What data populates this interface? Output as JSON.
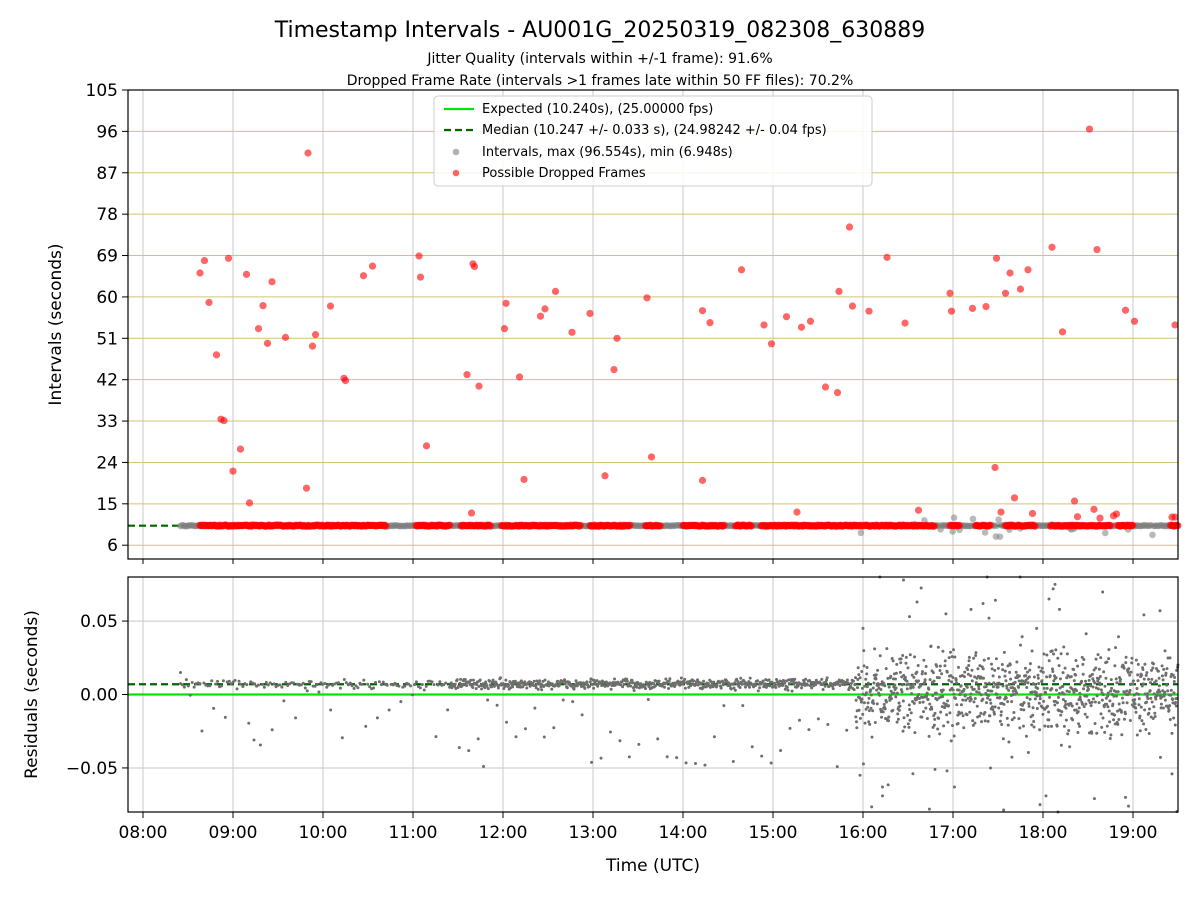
{
  "title": "Timestamp Intervals - AU001G_20250319_082308_630889",
  "subtitle_lines": [
    "Jitter Quality (intervals within +/-1 frame): 91.6%",
    "Dropped Frame Rate (intervals >1 frames late within 50 FF files): 70.2%"
  ],
  "colors": {
    "expected": "#00e600",
    "median": "#006400",
    "intervals": "#808080",
    "dropped": "#ff0000",
    "hgrid": "#d4c07a",
    "vgrid": "#c8c8c8"
  },
  "chart_data": [
    {
      "type": "scatter",
      "ylabel": "Intervals (seconds)",
      "xlim": [
        "07:50",
        "19:30"
      ],
      "ylim": [
        3,
        105
      ],
      "y_ticks": [
        6,
        15,
        24,
        33,
        42,
        51,
        60,
        69,
        78,
        87,
        96,
        105
      ],
      "grid": true,
      "legend_position": "top-center",
      "legend": [
        "Expected (10.240s), (25.00000 fps)",
        "Median (10.247 +/- 0.033 s), (24.98242 +/- 0.04 fps)",
        "Intervals, max (96.554s), min (6.948s)",
        "Possible Dropped Frames"
      ],
      "expected_line": 10.24,
      "median_line": 10.247,
      "dropped_frame_points": [
        [
          "08:38",
          65.2
        ],
        [
          "08:41",
          67.9
        ],
        [
          "08:44",
          58.8
        ],
        [
          "08:49",
          47.4
        ],
        [
          "08:52",
          33.4
        ],
        [
          "08:54",
          33.1
        ],
        [
          "08:57",
          68.4
        ],
        [
          "09:00",
          22.1
        ],
        [
          "09:05",
          26.9
        ],
        [
          "09:09",
          64.9
        ],
        [
          "09:11",
          15.2
        ],
        [
          "09:17",
          53.1
        ],
        [
          "09:20",
          58.1
        ],
        [
          "09:23",
          49.9
        ],
        [
          "09:26",
          63.3
        ],
        [
          "09:35",
          51.2
        ],
        [
          "09:49",
          18.4
        ],
        [
          "09:50",
          91.3
        ],
        [
          "09:53",
          49.3
        ],
        [
          "09:55",
          51.8
        ],
        [
          "10:05",
          58.0
        ],
        [
          "10:14",
          42.3
        ],
        [
          "10:15",
          41.8
        ],
        [
          "10:27",
          64.6
        ],
        [
          "10:33",
          66.7
        ],
        [
          "11:04",
          68.9
        ],
        [
          "11:05",
          64.3
        ],
        [
          "11:09",
          27.6
        ],
        [
          "11:36",
          43.1
        ],
        [
          "11:39",
          13.0
        ],
        [
          "11:40",
          67.2
        ],
        [
          "11:41",
          66.6
        ],
        [
          "11:44",
          40.6
        ],
        [
          "12:01",
          53.1
        ],
        [
          "12:02",
          58.6
        ],
        [
          "12:11",
          42.6
        ],
        [
          "12:14",
          20.3
        ],
        [
          "12:25",
          55.8
        ],
        [
          "12:28",
          57.4
        ],
        [
          "12:35",
          61.2
        ],
        [
          "12:46",
          52.3
        ],
        [
          "12:58",
          56.4
        ],
        [
          "13:08",
          21.1
        ],
        [
          "13:14",
          44.2
        ],
        [
          "13:16",
          51.0
        ],
        [
          "13:36",
          59.8
        ],
        [
          "13:39",
          25.2
        ],
        [
          "14:13",
          20.1
        ],
        [
          "14:13",
          57.0
        ],
        [
          "14:18",
          54.4
        ],
        [
          "14:39",
          65.9
        ],
        [
          "14:54",
          53.9
        ],
        [
          "14:59",
          49.8
        ],
        [
          "15:09",
          55.7
        ],
        [
          "15:16",
          13.2
        ],
        [
          "15:19",
          53.4
        ],
        [
          "15:25",
          54.7
        ],
        [
          "15:35",
          40.4
        ],
        [
          "15:43",
          39.2
        ],
        [
          "15:44",
          61.2
        ],
        [
          "15:51",
          75.2
        ],
        [
          "15:53",
          58.0
        ],
        [
          "16:04",
          56.9
        ],
        [
          "16:16",
          68.6
        ],
        [
          "16:28",
          54.3
        ],
        [
          "16:37",
          13.6
        ],
        [
          "16:58",
          60.8
        ],
        [
          "16:59",
          56.9
        ],
        [
          "17:13",
          57.5
        ],
        [
          "17:22",
          57.9
        ],
        [
          "17:28",
          22.9
        ],
        [
          "17:29",
          68.4
        ],
        [
          "17:32",
          13.2
        ],
        [
          "17:35",
          60.8
        ],
        [
          "17:38",
          65.2
        ],
        [
          "17:41",
          16.3
        ],
        [
          "17:45",
          61.7
        ],
        [
          "17:50",
          65.9
        ],
        [
          "17:53",
          12.9
        ],
        [
          "18:06",
          70.8
        ],
        [
          "18:13",
          52.4
        ],
        [
          "18:21",
          15.6
        ],
        [
          "18:23",
          12.2
        ],
        [
          "18:31",
          96.5
        ],
        [
          "18:34",
          13.8
        ],
        [
          "18:36",
          70.3
        ],
        [
          "18:38",
          11.9
        ],
        [
          "18:47",
          12.4
        ],
        [
          "18:49",
          12.8
        ],
        [
          "18:55",
          57.1
        ],
        [
          "19:01",
          54.7
        ],
        [
          "19:26",
          12.1
        ],
        [
          "19:28",
          12.1
        ],
        [
          "19:28",
          53.9
        ]
      ]
    },
    {
      "type": "scatter",
      "xlabel": "Time (UTC)",
      "ylabel": "Residuals (seconds)",
      "xlim": [
        "07:50",
        "19:30"
      ],
      "ylim": [
        -0.08,
        0.08
      ],
      "y_tick_labels": [
        "0.05",
        "0.00",
        "−0.05"
      ],
      "y_tick_values": [
        0.05,
        0.0,
        -0.05
      ],
      "x_tick_labels": [
        "08:00",
        "09:00",
        "10:00",
        "11:00",
        "12:00",
        "13:00",
        "14:00",
        "15:00",
        "16:00",
        "17:00",
        "18:00",
        "19:00"
      ],
      "grid": true,
      "expected_line": 0.0,
      "median_line": 0.007,
      "residual_bands": [
        {
          "from": "08:25",
          "to": "11:25",
          "center": 0.007,
          "spread": 0.003,
          "step_minutes": 1.3,
          "outlier_every": 6,
          "outlier_range": [
            -0.035,
            0.005
          ]
        },
        {
          "from": "11:25",
          "to": "15:55",
          "center": 0.007,
          "spread": 0.004,
          "step_minutes": 0.45,
          "outlier_every": 14,
          "outlier_range": [
            -0.05,
            0.0
          ]
        },
        {
          "from": "15:55",
          "to": "19:30",
          "center": 0.002,
          "spread": 0.03,
          "step_minutes": 0.22,
          "outlier_every": 25,
          "outlier_range": [
            -0.085,
            0.085
          ]
        }
      ],
      "residual_outliers": [
        [
          "08:25",
          0.015
        ],
        [
          "09:14",
          -0.031
        ],
        [
          "11:47",
          -0.049
        ],
        [
          "15:58",
          -0.055
        ],
        [
          "16:00",
          0.045
        ],
        [
          "16:13",
          -0.069
        ],
        [
          "16:13",
          -0.063
        ],
        [
          "16:27",
          0.078
        ],
        [
          "16:31",
          0.053
        ],
        [
          "16:36",
          0.063
        ],
        [
          "16:48",
          -0.051
        ],
        [
          "16:56",
          -0.052
        ],
        [
          "17:01",
          -0.063
        ],
        [
          "17:12",
          0.058
        ],
        [
          "17:20",
          0.062
        ],
        [
          "17:24",
          0.052
        ],
        [
          "17:25",
          -0.05
        ],
        [
          "17:58",
          -0.075
        ],
        [
          "18:02",
          -0.069
        ],
        [
          "18:04",
          0.065
        ],
        [
          "18:08",
          0.075
        ],
        [
          "18:10",
          -0.08
        ],
        [
          "18:11",
          0.058
        ],
        [
          "18:55",
          -0.07
        ],
        [
          "18:57",
          -0.076
        ],
        [
          "19:18",
          0.057
        ],
        [
          "19:26",
          -0.054
        ]
      ]
    }
  ]
}
